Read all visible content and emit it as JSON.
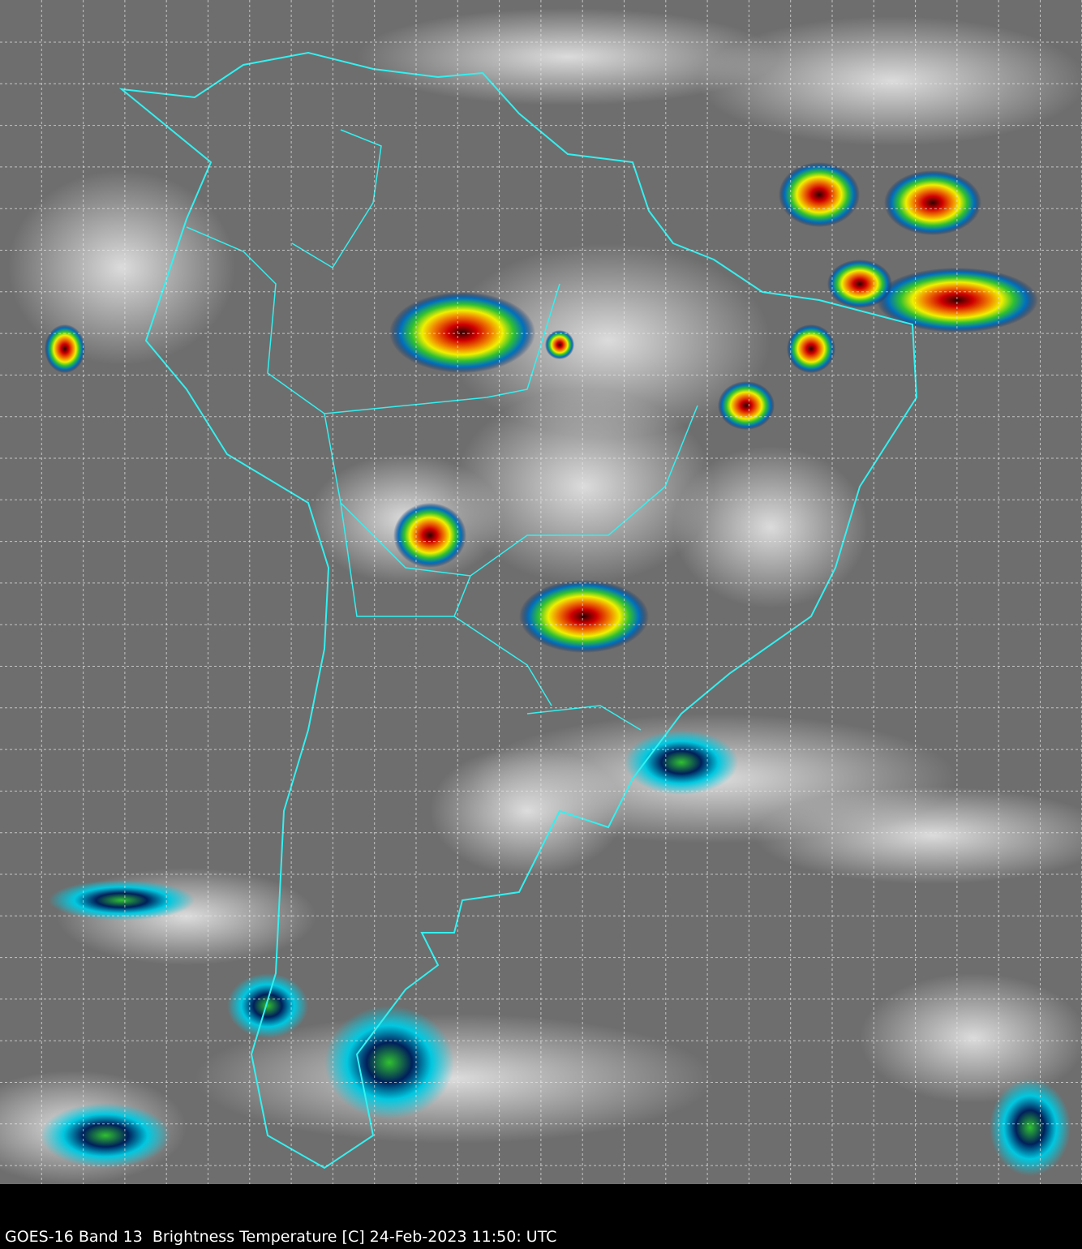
{
  "caption": "GOES-16 Band 13  Brightness Temperature [C] 24-Feb-2023 11:50: UTC",
  "colors": {
    "background_gray": "#6e6e6e",
    "border_lines": "#33f0f0",
    "grid_lines": "#e8e8e8",
    "cold_cloud_scale": [
      "#00205a",
      "#0070c0",
      "#00c8e0",
      "#30c030",
      "#f0f000",
      "#f08000",
      "#d00000",
      "#300000"
    ]
  }
}
